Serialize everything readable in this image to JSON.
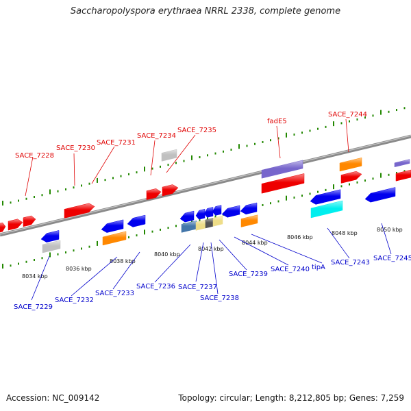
{
  "title": "Saccharopolyspora erythraea NRRL 2338, complete genome",
  "footer": {
    "accession": "Accession: NC_009142",
    "topology": "Topology: circular; Length: 8,212,805 bp; Genes: 7,259"
  },
  "colors": {
    "forward_gene": "#ee0000",
    "reverse_gene": "#0000ee",
    "rna": "#c0c0c0",
    "orange": "#ff8800",
    "purple": "#7766cc",
    "cyan": "#00eeee",
    "steel": "#4477aa",
    "khaki": "#eedd88",
    "dark": "#555555",
    "top_label": "#e00000",
    "bottom_label": "#0000cc",
    "tick": "#228800"
  },
  "scale_ticks": [
    "8034 kbp",
    "8036 kbp",
    "8038 kbp",
    "8040 kbp",
    "8042 kbp",
    "8044 kbp",
    "8046 kbp",
    "8048 kbp",
    "8050 kbp"
  ],
  "top_labels": [
    "SACE_7228",
    "SACE_7230",
    "SACE_7231",
    "SACE_7234",
    "SACE_7235",
    "fadE5",
    "SACE_7244"
  ],
  "bottom_labels": [
    "SACE_7229",
    "SACE_7232",
    "SACE_7233",
    "SACE_7236",
    "SACE_7237",
    "SACE_7238",
    "SACE_7239",
    "SACE_7240",
    "tipA",
    "SACE_7243",
    "SACE_7245"
  ]
}
